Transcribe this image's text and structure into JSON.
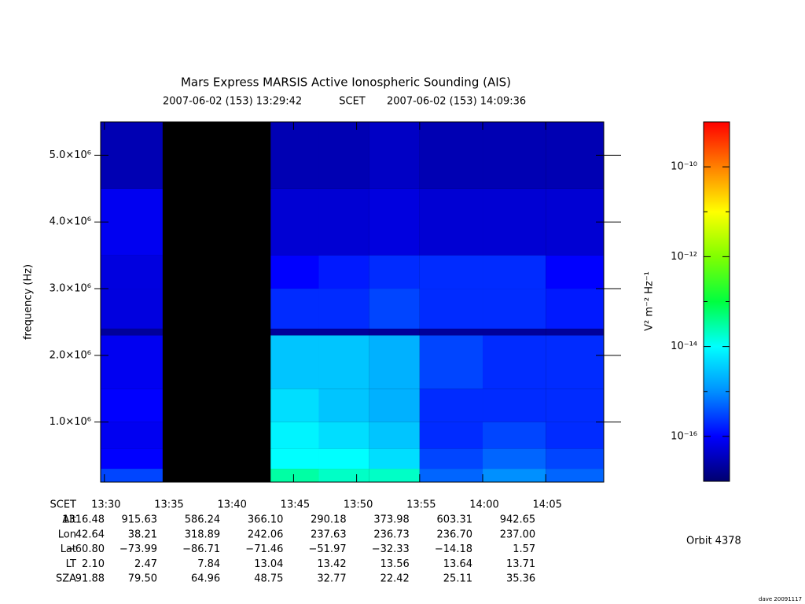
{
  "chart_data": {
    "type": "heatmap",
    "title": "Mars Express MARSIS Active Ionospheric Sounding (AIS)",
    "subtitle_start": "2007-06-02 (153) 13:29:42",
    "subtitle_frame": "SCET",
    "subtitle_end": "2007-06-02 (153) 14:09:36",
    "ylabel": "frequency (Hz)",
    "xlim": [
      "13:29:42",
      "14:09:36"
    ],
    "xticks": [
      "13:30",
      "13:35",
      "13:40",
      "13:45",
      "13:50",
      "13:55",
      "14:00",
      "14:05"
    ],
    "ylim": [
      100000,
      5500000
    ],
    "yticks": [
      {
        "value": 1000000,
        "label": "1.0×10⁶"
      },
      {
        "value": 2000000,
        "label": "2.0×10⁶"
      },
      {
        "value": 3000000,
        "label": "3.0×10⁶"
      },
      {
        "value": 4000000,
        "label": "4.0×10⁶"
      },
      {
        "value": 5000000,
        "label": "5.0×10⁶"
      }
    ],
    "x_edges": [
      "13:29:42",
      "13:34:37",
      "13:43:11",
      "13:47:00",
      "13:51:00",
      "13:55:00",
      "14:00:00",
      "14:05:00",
      "14:09:36"
    ],
    "y_edges": [
      100000,
      300000,
      600000,
      1000000,
      1500000,
      2300000,
      2400000,
      3000000,
      3500000,
      4500000,
      5500000
    ],
    "z": [
      [
        3e-16,
        null,
        3e-14,
        2e-14,
        2e-14,
        5e-16,
        1e-15,
        5e-16
      ],
      [
        1e-16,
        null,
        1e-14,
        1e-14,
        5e-15,
        3e-16,
        5e-16,
        3e-16
      ],
      [
        8e-17,
        null,
        8e-15,
        5e-15,
        3e-15,
        2e-16,
        3e-16,
        2e-16
      ],
      [
        1e-16,
        null,
        5e-15,
        3e-15,
        2e-15,
        2e-16,
        2e-16,
        2e-16
      ],
      [
        8e-17,
        null,
        3e-15,
        3e-15,
        2e-15,
        3e-16,
        2e-16,
        2e-16
      ],
      [
        2e-17,
        null,
        2e-17,
        2e-17,
        2e-17,
        2e-17,
        2e-17,
        2e-17
      ],
      [
        6e-17,
        null,
        2e-16,
        2e-16,
        3e-16,
        2e-16,
        2e-16,
        1.5e-16
      ],
      [
        6e-17,
        null,
        1e-16,
        1.5e-16,
        2e-16,
        2e-16,
        2e-16,
        1e-16
      ],
      [
        8e-17,
        null,
        5e-17,
        5e-17,
        6e-17,
        5e-17,
        5e-17,
        5e-17
      ],
      [
        3e-17,
        null,
        3e-17,
        3e-17,
        4e-17,
        3e-17,
        3e-17,
        3e-17
      ]
    ],
    "missing_color": "#000000",
    "colorbar": {
      "label": "V² m⁻² Hz⁻¹",
      "lim": [
        1e-17,
        1e-09
      ],
      "log": true,
      "ticks": [
        {
          "value": 1e-16,
          "label": "10⁻¹⁶"
        },
        {
          "value": 1e-14,
          "label": "10⁻¹⁴"
        },
        {
          "value": 1e-12,
          "label": "10⁻¹²"
        },
        {
          "value": 1e-10,
          "label": "10⁻¹⁰"
        }
      ],
      "minor_ticks": [
        1e-15,
        1e-13,
        1e-11
      ],
      "colormap": [
        "#00006e",
        "#0000ff",
        "#0090ff",
        "#00ffff",
        "#00ff40",
        "#80ff00",
        "#ffff00",
        "#ff8000",
        "#ff0000"
      ]
    }
  },
  "ephemeris": {
    "time_label": "SCET",
    "rows": [
      {
        "name": "Alt",
        "values": [
          "1316.48",
          "915.63",
          "586.24",
          "366.10",
          "290.18",
          "373.98",
          "603.31",
          "942.65"
        ]
      },
      {
        "name": "Lon",
        "values": [
          "42.64",
          "38.21",
          "318.89",
          "242.06",
          "237.63",
          "236.73",
          "236.70",
          "237.00"
        ]
      },
      {
        "name": "Lat",
        "values": [
          "−60.80",
          "−73.99",
          "−86.71",
          "−71.46",
          "−51.97",
          "−32.33",
          "−14.18",
          "1.57"
        ]
      },
      {
        "name": "LT",
        "values": [
          "2.10",
          "2.47",
          "7.84",
          "13.04",
          "13.42",
          "13.56",
          "13.64",
          "13.71"
        ]
      },
      {
        "name": "SZA",
        "values": [
          "91.88",
          "79.50",
          "64.96",
          "48.75",
          "32.77",
          "22.42",
          "25.11",
          "35.36"
        ]
      }
    ]
  },
  "orbit": "Orbit 4378",
  "footer": "dave 20091117"
}
